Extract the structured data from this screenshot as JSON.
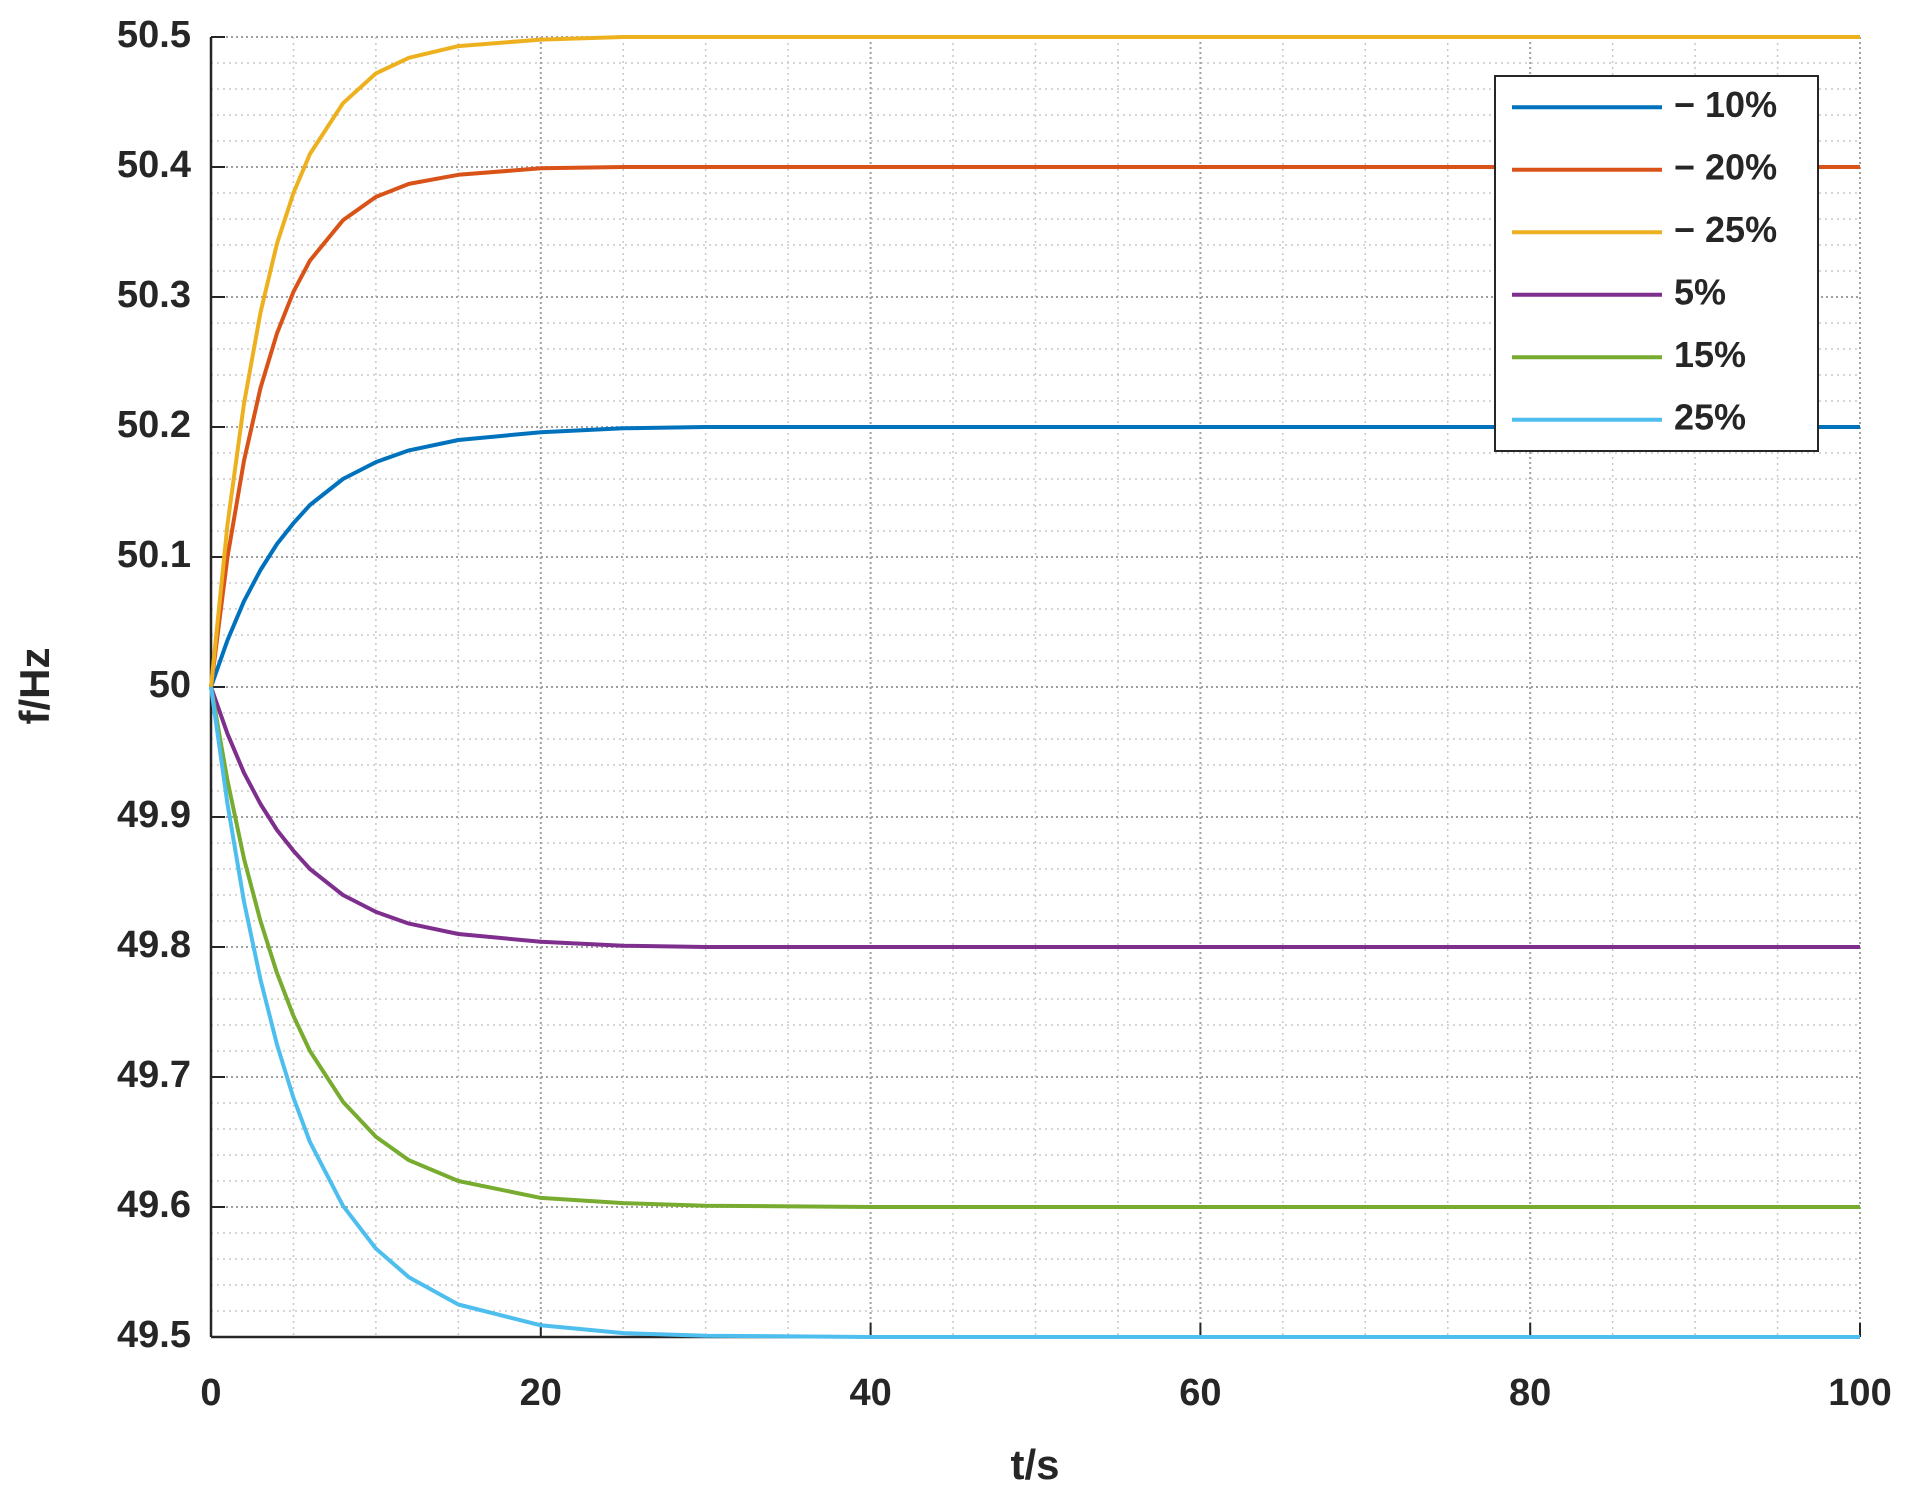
{
  "chart_data": {
    "type": "line",
    "xlabel": "t/s",
    "ylabel": "f/Hz",
    "x": [
      0,
      1,
      2,
      3,
      4,
      5,
      6,
      8,
      10,
      12,
      15,
      20,
      25,
      30,
      40,
      60,
      80,
      100
    ],
    "series": [
      {
        "name": "− 10%",
        "color": "#0072bd",
        "values": [
          50,
          50.036,
          50.066,
          50.09,
          50.11,
          50.126,
          50.14,
          50.16,
          50.173,
          50.182,
          50.19,
          50.196,
          50.199,
          50.2,
          50.2,
          50.2,
          50.2,
          50.2
        ]
      },
      {
        "name": "− 20%",
        "color": "#d95319",
        "values": [
          50,
          50.1,
          50.174,
          50.23,
          50.272,
          50.304,
          50.328,
          50.359,
          50.377,
          50.387,
          50.394,
          50.399,
          50.4,
          50.4,
          50.4,
          50.4,
          50.4,
          50.4
        ]
      },
      {
        "name": "− 25%",
        "color": "#edb120",
        "values": [
          50,
          50.125,
          50.218,
          50.288,
          50.341,
          50.38,
          50.41,
          50.449,
          50.472,
          50.484,
          50.493,
          50.498,
          50.5,
          50.5,
          50.5,
          50.5,
          50.5,
          50.5
        ]
      },
      {
        "name": "5%",
        "color": "#7e2f8e",
        "values": [
          50,
          49.964,
          49.934,
          49.91,
          49.89,
          49.874,
          49.86,
          49.84,
          49.827,
          49.818,
          49.81,
          49.804,
          49.801,
          49.8,
          49.8,
          49.8,
          49.8,
          49.8
        ]
      },
      {
        "name": "15%",
        "color": "#77ac30",
        "values": [
          50,
          49.928,
          49.868,
          49.82,
          49.78,
          49.747,
          49.72,
          49.681,
          49.654,
          49.636,
          49.62,
          49.607,
          49.603,
          49.601,
          49.6,
          49.6,
          49.6,
          49.6
        ]
      },
      {
        "name": "25%",
        "color": "#4dbeee",
        "values": [
          50,
          49.91,
          49.835,
          49.775,
          49.725,
          49.684,
          49.65,
          49.601,
          49.568,
          49.546,
          49.525,
          49.509,
          49.503,
          49.501,
          49.5,
          49.5,
          49.5,
          49.5
        ]
      }
    ],
    "xlim": [
      0,
      100
    ],
    "xticks": [
      0,
      20,
      40,
      60,
      80,
      100
    ],
    "ylim": [
      49.5,
      50.5
    ],
    "yticks": [
      49.5,
      49.6,
      49.7,
      49.8,
      49.9,
      50,
      50.1,
      50.2,
      50.3,
      50.4,
      50.5
    ],
    "grid": true,
    "minor_grid": true,
    "legend": "upper right"
  }
}
